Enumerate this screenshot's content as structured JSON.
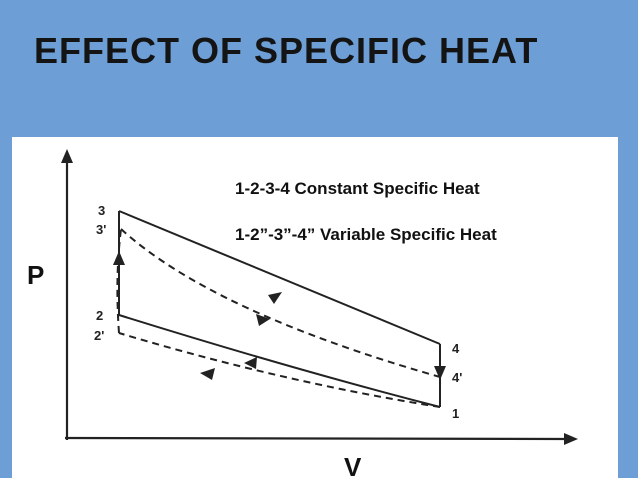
{
  "slide": {
    "title": "EFFECT OF SPECIFIC HEAT"
  },
  "diagram": {
    "legend": [
      "1-2-3-4 Constant Specific Heat",
      "1-2”-3”-4” Variable Specific Heat"
    ],
    "axis_y_label": "P",
    "axis_x_label": "V",
    "point_labels": {
      "p3": "3",
      "p3p": "3'",
      "p2": "2",
      "p2p": "2'",
      "p4": "4",
      "p4p": "4'",
      "p1": "1"
    }
  },
  "colors": {
    "background": "#6d9ed6",
    "panel": "#ffffff",
    "ink": "#111111"
  }
}
